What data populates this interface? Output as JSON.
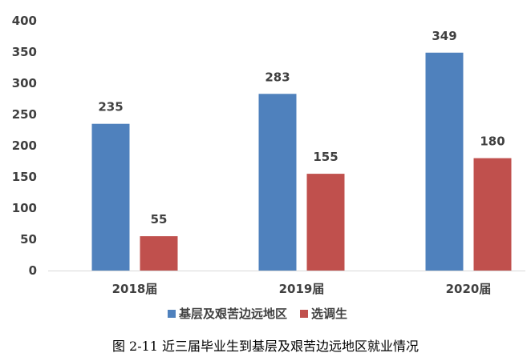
{
  "chart_data": {
    "type": "bar",
    "categories": [
      "2018届",
      "2019届",
      "2020届"
    ],
    "series": [
      {
        "name": "基层及艰苦边远地区",
        "values": [
          235,
          283,
          349
        ],
        "color": "#4F81BD"
      },
      {
        "name": "选调生",
        "values": [
          55,
          155,
          180
        ],
        "color": "#C0504D"
      }
    ],
    "ylim": [
      0,
      400
    ],
    "yticks": [
      0,
      50,
      100,
      150,
      200,
      250,
      300,
      350,
      400
    ],
    "grid": false,
    "legend_position": "bottom",
    "data_labels": true
  },
  "caption": "图 2-11 近三届毕业生到基层及艰苦边远地区就业情况"
}
